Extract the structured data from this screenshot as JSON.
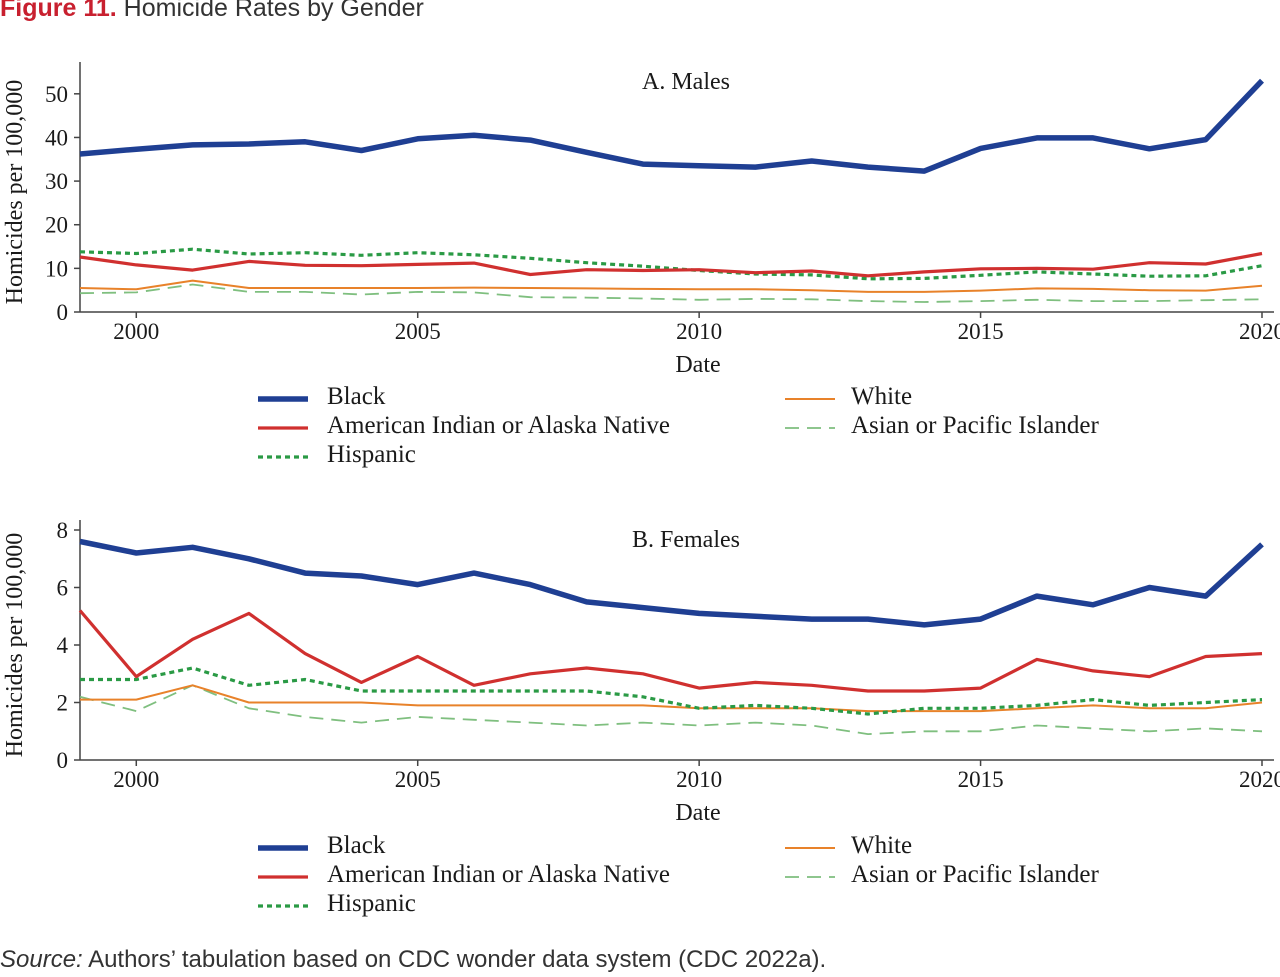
{
  "figure": {
    "label": "Figure 11.",
    "title": "Homicide Rates by Gender",
    "source_label": "Source:",
    "source_text": " Authors’ tabulation based on CDC wonder data system (CDC 2022a)."
  },
  "chart_data": [
    {
      "type": "line",
      "title": "A. Males",
      "xlabel": "Date",
      "ylabel": "Homicides per 100,000",
      "xlim": [
        1999,
        2020
      ],
      "ylim": [
        0,
        55
      ],
      "xticks": [
        2000,
        2005,
        2010,
        2015,
        2020
      ],
      "yticks": [
        0,
        10,
        20,
        30,
        40,
        50
      ],
      "grid": false,
      "legend": [
        "Black",
        "American Indian or Alaska Native",
        "Hispanic",
        "White",
        "Asian or Pacific Islander"
      ],
      "x": [
        1999,
        2000,
        2001,
        2002,
        2003,
        2004,
        2005,
        2006,
        2007,
        2008,
        2009,
        2010,
        2011,
        2012,
        2013,
        2014,
        2015,
        2016,
        2017,
        2018,
        2019,
        2020
      ],
      "series": [
        {
          "name": "Black",
          "color": "#1f3f93",
          "style": "thick",
          "values": [
            36.2,
            37.3,
            38.3,
            38.5,
            39.0,
            37.0,
            39.7,
            40.5,
            39.4,
            36.6,
            33.9,
            33.5,
            33.2,
            34.6,
            33.2,
            32.3,
            37.5,
            39.9,
            39.9,
            37.4,
            39.5,
            53.0
          ]
        },
        {
          "name": "American Indian or Alaska Native",
          "color": "#d0302f",
          "style": "solid",
          "values": [
            12.6,
            10.8,
            9.6,
            11.6,
            10.7,
            10.6,
            10.9,
            11.2,
            8.6,
            9.7,
            9.5,
            9.7,
            9.0,
            9.4,
            8.3,
            9.2,
            9.9,
            10.0,
            9.8,
            11.3,
            11.0,
            13.4
          ]
        },
        {
          "name": "Hispanic",
          "color": "#2a9a45",
          "style": "dotted",
          "values": [
            13.8,
            13.4,
            14.4,
            13.3,
            13.6,
            13.0,
            13.6,
            13.1,
            12.3,
            11.3,
            10.5,
            9.5,
            8.7,
            8.5,
            7.6,
            7.7,
            8.4,
            9.2,
            8.7,
            8.2,
            8.3,
            10.6
          ]
        },
        {
          "name": "White",
          "color": "#e8822a",
          "style": "thin",
          "values": [
            5.5,
            5.2,
            7.2,
            5.5,
            5.5,
            5.5,
            5.5,
            5.6,
            5.5,
            5.4,
            5.3,
            5.2,
            5.2,
            5.0,
            4.6,
            4.6,
            4.9,
            5.4,
            5.3,
            5.0,
            4.9,
            6.0
          ]
        },
        {
          "name": "Asian or Pacific Islander",
          "color": "#7fbf7f",
          "style": "dashed",
          "values": [
            4.3,
            4.5,
            6.3,
            4.6,
            4.6,
            4.0,
            4.6,
            4.5,
            3.4,
            3.3,
            3.1,
            2.8,
            3.0,
            2.9,
            2.5,
            2.3,
            2.5,
            2.8,
            2.5,
            2.5,
            2.7,
            2.9
          ]
        }
      ]
    },
    {
      "type": "line",
      "title": "B. Females",
      "xlabel": "Date",
      "ylabel": "Homicides per 100,000",
      "xlim": [
        1999,
        2020
      ],
      "ylim": [
        0,
        8
      ],
      "xticks": [
        2000,
        2005,
        2010,
        2015,
        2020
      ],
      "yticks": [
        0,
        2,
        4,
        6,
        8
      ],
      "grid": false,
      "legend": [
        "Black",
        "American Indian or Alaska Native",
        "Hispanic",
        "White",
        "Asian or Pacific Islander"
      ],
      "x": [
        1999,
        2000,
        2001,
        2002,
        2003,
        2004,
        2005,
        2006,
        2007,
        2008,
        2009,
        2010,
        2011,
        2012,
        2013,
        2014,
        2015,
        2016,
        2017,
        2018,
        2019,
        2020
      ],
      "series": [
        {
          "name": "Black",
          "color": "#1f3f93",
          "style": "thick",
          "values": [
            7.6,
            7.2,
            7.4,
            7.0,
            6.5,
            6.4,
            6.1,
            6.5,
            6.1,
            5.5,
            5.3,
            5.1,
            5.0,
            4.9,
            4.9,
            4.7,
            4.9,
            5.7,
            5.4,
            6.0,
            5.7,
            7.5
          ]
        },
        {
          "name": "American Indian or Alaska Native",
          "color": "#d0302f",
          "style": "solid",
          "values": [
            5.2,
            2.9,
            4.2,
            5.1,
            3.7,
            2.7,
            3.6,
            2.6,
            3.0,
            3.2,
            3.0,
            2.5,
            2.7,
            2.6,
            2.4,
            2.4,
            2.5,
            3.5,
            3.1,
            2.9,
            3.6,
            3.7
          ]
        },
        {
          "name": "Hispanic",
          "color": "#2a9a45",
          "style": "dotted",
          "values": [
            2.8,
            2.8,
            3.2,
            2.6,
            2.8,
            2.4,
            2.4,
            2.4,
            2.4,
            2.4,
            2.2,
            1.8,
            1.9,
            1.8,
            1.6,
            1.8,
            1.8,
            1.9,
            2.1,
            1.9,
            2.0,
            2.1
          ]
        },
        {
          "name": "White",
          "color": "#e8822a",
          "style": "thin",
          "values": [
            2.1,
            2.1,
            2.6,
            2.0,
            2.0,
            2.0,
            1.9,
            1.9,
            1.9,
            1.9,
            1.9,
            1.8,
            1.8,
            1.8,
            1.7,
            1.7,
            1.7,
            1.8,
            1.9,
            1.8,
            1.8,
            2.0
          ]
        },
        {
          "name": "Asian or Pacific Islander",
          "color": "#7fbf7f",
          "style": "dashed",
          "values": [
            2.2,
            1.7,
            2.6,
            1.8,
            1.5,
            1.3,
            1.5,
            1.4,
            1.3,
            1.2,
            1.3,
            1.2,
            1.3,
            1.2,
            0.9,
            1.0,
            1.0,
            1.2,
            1.1,
            1.0,
            1.1,
            1.0
          ]
        }
      ]
    }
  ]
}
